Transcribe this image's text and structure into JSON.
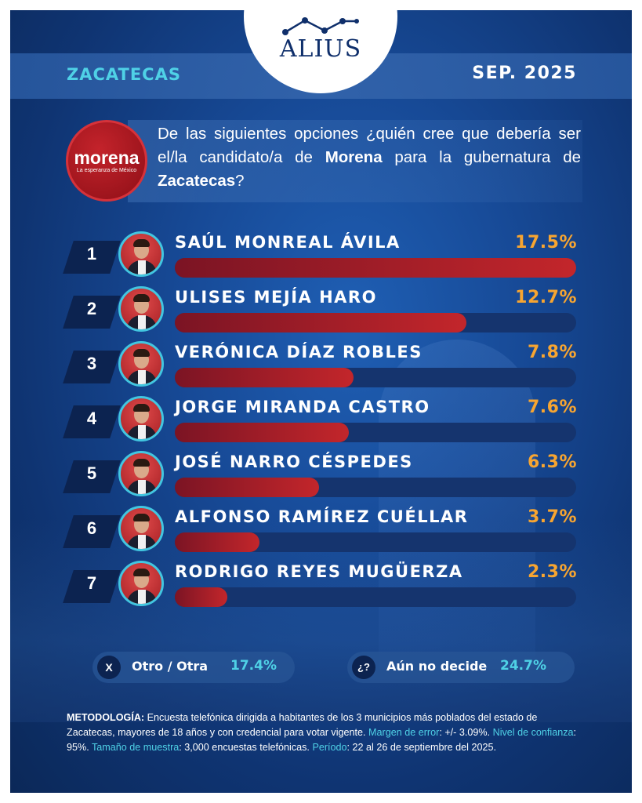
{
  "header": {
    "brand": "ALIUS",
    "state": "ZACATECAS",
    "date": "SEP. 2025"
  },
  "party": {
    "name": "morena",
    "tagline": "La esperanza de México",
    "color": "#b71c24"
  },
  "question": {
    "part1": "De las siguientes opciones ¿quién cree que debería ser el/la candidato/a de ",
    "party": "Morena",
    "part2": " para la gubernatura de ",
    "state": "Zacatecas",
    "part3": "?"
  },
  "chart_data": {
    "type": "bar",
    "orientation": "horizontal",
    "categories": [
      "SAÚL MONREAL ÁVILA",
      "ULISES MEJÍA HARO",
      "VERÓNICA DÍAZ ROBLES",
      "JORGE MIRANDA CASTRO",
      "JOSÉ NARRO CÉSPEDES",
      "ALFONSO RAMÍREZ CUÉLLAR",
      "RODRIGO REYES MUGÜERZA"
    ],
    "ranks": [
      "1",
      "2",
      "3",
      "4",
      "5",
      "6",
      "7"
    ],
    "values": [
      17.5,
      12.7,
      7.8,
      7.6,
      6.3,
      3.7,
      2.3
    ],
    "labels": [
      "17.5%",
      "12.7%",
      "7.8%",
      "7.6%",
      "6.3%",
      "3.7%",
      "2.3%"
    ],
    "xlim": [
      0,
      17.5
    ],
    "colors": {
      "bar": "#c3262b",
      "value": "#f7a531",
      "track": "#15346e"
    }
  },
  "extras": [
    {
      "icon": "X",
      "label": "Otro / Otra",
      "value": "17.4%"
    },
    {
      "icon": "¿?",
      "label": "Aún no decide",
      "value": "24.7%"
    }
  ],
  "methodology": {
    "l1": "METODOLOGÍA:",
    "t1": " Encuesta telefónica dirigida a habitantes de los 3 municipios más poblados del estado de Zacatecas, mayores de 18 años y con credencial para votar vigente. ",
    "l2": "Margen de error",
    "t2": ": +/- 3.09%. ",
    "l3": "Nivel de confianza",
    "t3": ": 95%. ",
    "l4": "Tamaño de muestra",
    "t4": ": 3,000 encuestas telefónicas. ",
    "l5": "Período",
    "t5": ": 22 al 26 de septiembre del 2025."
  }
}
